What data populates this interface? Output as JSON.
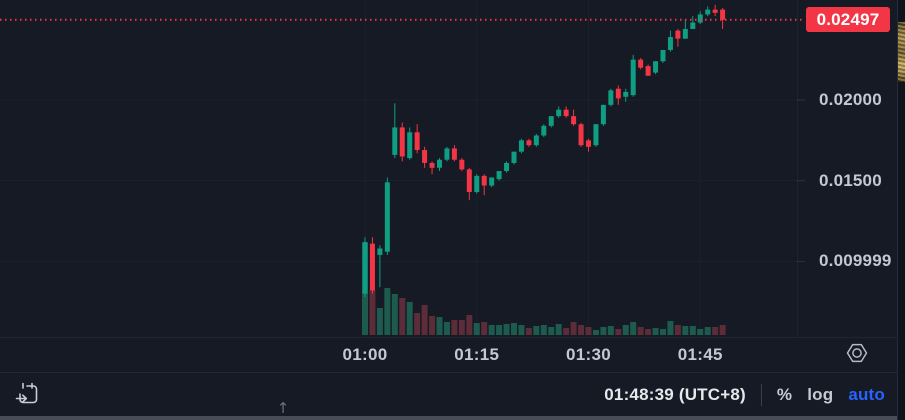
{
  "chart_data": {
    "type": "candlestick",
    "interval_minutes": 1,
    "columns": [
      "time",
      "open",
      "high",
      "low",
      "close",
      "volume"
    ],
    "candles": [
      [
        "01:00",
        0.008,
        0.0115,
        0.0078,
        0.0112,
        92
      ],
      [
        "01:01",
        0.0111,
        0.0115,
        0.008,
        0.0082,
        45
      ],
      [
        "01:02",
        0.0104,
        0.011,
        0.0084,
        0.0108,
        27
      ],
      [
        "01:03",
        0.0106,
        0.0152,
        0.0104,
        0.0149,
        47
      ],
      [
        "01:04",
        0.0166,
        0.0198,
        0.0164,
        0.0183,
        41
      ],
      [
        "01:05",
        0.0183,
        0.0186,
        0.0162,
        0.0165,
        37
      ],
      [
        "01:06",
        0.0164,
        0.0183,
        0.0163,
        0.018,
        33
      ],
      [
        "01:07",
        0.018,
        0.0185,
        0.0167,
        0.0169,
        22
      ],
      [
        "01:08",
        0.0169,
        0.0171,
        0.0158,
        0.0161,
        30
      ],
      [
        "01:09",
        0.0161,
        0.0162,
        0.0154,
        0.0158,
        19
      ],
      [
        "01:10",
        0.0158,
        0.0164,
        0.0156,
        0.0163,
        18
      ],
      [
        "01:11",
        0.0163,
        0.0171,
        0.0162,
        0.017,
        13
      ],
      [
        "01:12",
        0.017,
        0.0172,
        0.0162,
        0.0163,
        15
      ],
      [
        "01:13",
        0.0163,
        0.0164,
        0.0156,
        0.0157,
        15
      ],
      [
        "01:14",
        0.0157,
        0.0158,
        0.0138,
        0.0143,
        20
      ],
      [
        "01:15",
        0.0143,
        0.0154,
        0.0142,
        0.0153,
        12
      ],
      [
        "01:16",
        0.0153,
        0.0154,
        0.0141,
        0.0147,
        13
      ],
      [
        "01:17",
        0.0147,
        0.0152,
        0.0146,
        0.0152,
        10
      ],
      [
        "01:18",
        0.0151,
        0.0156,
        0.015,
        0.0156,
        10
      ],
      [
        "01:19",
        0.0156,
        0.0162,
        0.0155,
        0.0161,
        11
      ],
      [
        "01:20",
        0.0161,
        0.0168,
        0.016,
        0.0168,
        12
      ],
      [
        "01:21",
        0.0168,
        0.0176,
        0.0167,
        0.0175,
        10
      ],
      [
        "01:22",
        0.0175,
        0.0176,
        0.0171,
        0.0172,
        7
      ],
      [
        "01:23",
        0.0172,
        0.0179,
        0.0171,
        0.0178,
        9
      ],
      [
        "01:24",
        0.0178,
        0.0185,
        0.0177,
        0.0184,
        10
      ],
      [
        "01:25",
        0.0184,
        0.019,
        0.0183,
        0.019,
        8
      ],
      [
        "01:26",
        0.019,
        0.0196,
        0.0189,
        0.0194,
        11
      ],
      [
        "01:27",
        0.0194,
        0.0196,
        0.0189,
        0.019,
        7
      ],
      [
        "01:28",
        0.019,
        0.0194,
        0.0184,
        0.0185,
        13
      ],
      [
        "01:29",
        0.0185,
        0.0186,
        0.0171,
        0.0172,
        10
      ],
      [
        "01:30",
        0.0175,
        0.0176,
        0.0168,
        0.0171,
        8
      ],
      [
        "01:31",
        0.0172,
        0.0185,
        0.0171,
        0.0185,
        5
      ],
      [
        "01:32",
        0.0185,
        0.0197,
        0.0184,
        0.0197,
        8
      ],
      [
        "01:33",
        0.0197,
        0.0207,
        0.0196,
        0.0206,
        9
      ],
      [
        "01:34",
        0.0207,
        0.0209,
        0.0197,
        0.0201,
        6
      ],
      [
        "01:35",
        0.0202,
        0.0207,
        0.0199,
        0.0205,
        10
      ],
      [
        "01:36",
        0.0203,
        0.0228,
        0.0202,
        0.0225,
        13
      ],
      [
        "01:37",
        0.0225,
        0.0226,
        0.0219,
        0.022,
        8
      ],
      [
        "01:38",
        0.0221,
        0.0222,
        0.0215,
        0.0215,
        6
      ],
      [
        "01:39",
        0.0217,
        0.0224,
        0.0216,
        0.0224,
        7
      ],
      [
        "01:40",
        0.0224,
        0.0231,
        0.0223,
        0.0231,
        6
      ],
      [
        "01:41",
        0.0231,
        0.0243,
        0.023,
        0.0239,
        14
      ],
      [
        "01:42",
        0.0243,
        0.0244,
        0.0233,
        0.0238,
        10
      ],
      [
        "01:43",
        0.0238,
        0.025,
        0.0238,
        0.0244,
        9
      ],
      [
        "01:44",
        0.0244,
        0.0252,
        0.0244,
        0.0248,
        9
      ],
      [
        "01:45",
        0.0248,
        0.0255,
        0.0247,
        0.0253,
        6
      ],
      [
        "01:46",
        0.0253,
        0.0258,
        0.0252,
        0.0256,
        8
      ],
      [
        "01:47",
        0.0256,
        0.0259,
        0.0252,
        0.0254,
        8
      ],
      [
        "01:48",
        0.0256,
        0.0257,
        0.0244,
        0.02497,
        10
      ]
    ],
    "current_price": 0.02497,
    "current_price_label": "0.02497",
    "price_axis_ticks": [
      {
        "value": 0.02,
        "label": "0.02000"
      },
      {
        "value": 0.015,
        "label": "0.01500"
      },
      {
        "value": 0.009999,
        "label": "0.009999"
      }
    ],
    "time_axis_ticks": [
      "01:00",
      "01:15",
      "01:30",
      "01:45"
    ],
    "grid": true,
    "legend_position": "none",
    "colors": {
      "background": "#151a24",
      "up": "#0f9d83",
      "down": "#f23645",
      "volume_up": "#1e5b4f",
      "volume_down": "#5c2c38",
      "current_price_line": "#f23645",
      "current_price_badge_bg": "#f23645",
      "grid": "#1c212c",
      "axis_text": "#c3c8d2"
    }
  },
  "toolbar": {
    "clock": "01:48:39 (UTC+8)",
    "percent_label": "%",
    "log_label": "log",
    "auto_label": "auto",
    "auto_color": "#2962ff"
  },
  "icons": {
    "go_to_date": "calendar-arrow-icon",
    "chart_settings": "hexagon-circle-icon",
    "scroll_up": "arrow-up-icon",
    "scroll_up_glyph": "↑"
  }
}
